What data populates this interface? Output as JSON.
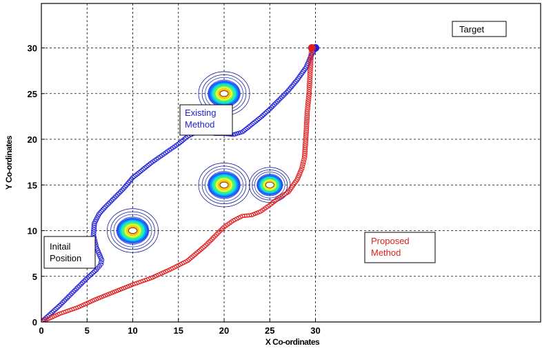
{
  "chart_data": {
    "type": "scatter",
    "title": "",
    "xlabel": "X Co-ordinates",
    "ylabel": "Y Co-ordinates",
    "xlim": [
      0,
      34.5
    ],
    "ylim": [
      0,
      34
    ],
    "xticks": [
      0,
      5,
      10,
      15,
      20,
      25,
      30
    ],
    "yticks": [
      0,
      5,
      10,
      15,
      20,
      25,
      30
    ],
    "grid": true,
    "series": [
      {
        "name": "Existing Method",
        "color": "#1f1fd6",
        "marker": "circle",
        "points": [
          [
            0,
            0
          ],
          [
            1,
            0.9
          ],
          [
            2,
            1.8
          ],
          [
            3,
            2.8
          ],
          [
            4,
            3.8
          ],
          [
            5,
            4.8
          ],
          [
            6,
            5.7
          ],
          [
            6.5,
            6.3
          ],
          [
            6.6,
            6.8
          ],
          [
            6,
            8.2
          ],
          [
            5.7,
            9.5
          ],
          [
            5.8,
            10.8
          ],
          [
            6.3,
            11.8
          ],
          [
            7,
            12.6
          ],
          [
            8,
            13.6
          ],
          [
            9,
            14.6
          ],
          [
            10,
            15.8
          ],
          [
            11,
            16.6
          ],
          [
            12,
            17.4
          ],
          [
            13,
            18.1
          ],
          [
            14,
            18.8
          ],
          [
            15,
            19.5
          ],
          [
            16,
            20.3
          ],
          [
            17,
            20.8
          ],
          [
            18,
            20.8
          ],
          [
            19,
            20.6
          ],
          [
            20,
            20.6
          ],
          [
            21,
            20.5
          ],
          [
            22,
            20.8
          ],
          [
            23,
            21.6
          ],
          [
            24,
            22.4
          ],
          [
            25,
            23.3
          ],
          [
            26,
            24.3
          ],
          [
            27,
            25.3
          ],
          [
            28,
            26.5
          ],
          [
            29,
            27.9
          ],
          [
            29.6,
            29.3
          ],
          [
            30,
            30
          ]
        ]
      },
      {
        "name": "Proposed Method",
        "color": "#e02020",
        "marker": "circle",
        "points": [
          [
            0,
            0
          ],
          [
            2,
            0.9
          ],
          [
            4,
            1.6
          ],
          [
            6,
            2.5
          ],
          [
            8,
            3.3
          ],
          [
            10,
            4.1
          ],
          [
            12,
            4.8
          ],
          [
            14,
            5.7
          ],
          [
            16,
            6.7
          ],
          [
            18,
            8.4
          ],
          [
            20,
            10.4
          ],
          [
            21,
            11.1
          ],
          [
            22,
            11.6
          ],
          [
            23,
            11.7
          ],
          [
            24,
            12.1
          ],
          [
            25,
            12.8
          ],
          [
            26,
            13.6
          ],
          [
            27,
            14.2
          ],
          [
            28,
            15.6
          ],
          [
            28.5,
            16.8
          ],
          [
            28.8,
            18
          ],
          [
            28.9,
            19.5
          ],
          [
            29,
            21
          ],
          [
            29.1,
            23
          ],
          [
            29.3,
            25
          ],
          [
            29.4,
            27
          ],
          [
            29.5,
            29
          ],
          [
            29.6,
            30
          ]
        ]
      }
    ],
    "obstacles": [
      {
        "center": [
          10,
          10
        ],
        "radius": 2
      },
      {
        "center": [
          20,
          25
        ],
        "radius": 2
      },
      {
        "center": [
          20,
          15
        ],
        "radius": 2
      },
      {
        "center": [
          25,
          15
        ],
        "radius": 1.6
      }
    ],
    "annotations": {
      "start": "Initail\nPosition",
      "target": "Target",
      "existing": "Existing\nMethod",
      "proposed": "Proposed\nMethod"
    }
  }
}
